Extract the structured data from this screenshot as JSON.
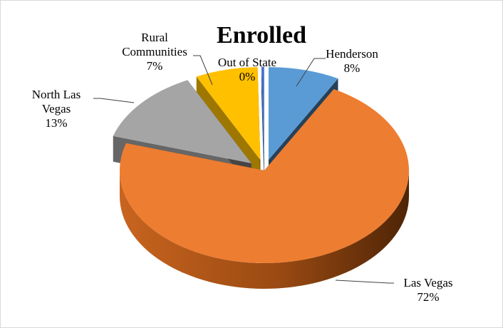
{
  "chart_data": {
    "type": "pie",
    "title": "Enrolled",
    "style": "3d-exploded",
    "slices": [
      {
        "name": "Henderson",
        "label_lines": [
          "Henderson"
        ],
        "value_text": "8%",
        "value": 8,
        "color": "#5B9BD5"
      },
      {
        "name": "Las Vegas",
        "label_lines": [
          "Las Vegas"
        ],
        "value_text": "72%",
        "value": 72,
        "color": "#ED7D31"
      },
      {
        "name": "North Las Vegas",
        "label_lines": [
          "North Las",
          "Vegas"
        ],
        "value_text": "13%",
        "value": 13,
        "color": "#A5A5A5"
      },
      {
        "name": "Rural Communities",
        "label_lines": [
          "Rural",
          "Communities"
        ],
        "value_text": "7%",
        "value": 7,
        "color": "#FFC000"
      },
      {
        "name": "Out of State",
        "label_lines": [
          "Out of State"
        ],
        "value_text": "0%",
        "value": 0.3,
        "color": "#4472C4"
      }
    ]
  }
}
